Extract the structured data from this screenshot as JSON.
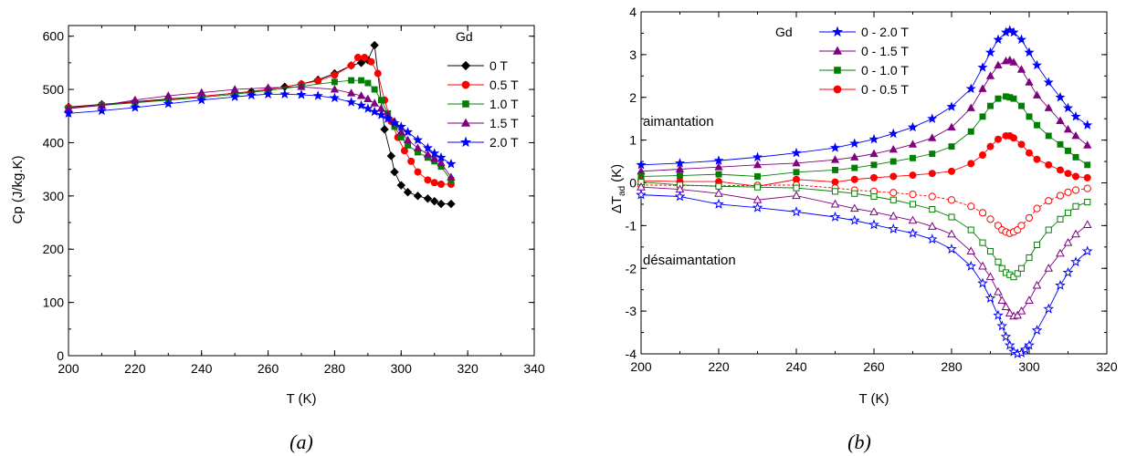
{
  "chart_data": [
    {
      "type": "line",
      "xlabel": "T (K)",
      "ylabel": "Cp (J/kg.K)",
      "xlim": [
        200,
        340
      ],
      "ylim": [
        0,
        620
      ],
      "xticks": [
        "200",
        "220",
        "240",
        "260",
        "280",
        "300",
        "320",
        "340"
      ],
      "yticks": [
        "0",
        "100",
        "200",
        "300",
        "400",
        "500",
        "600"
      ],
      "legend_title": "Gd",
      "legend_position": "top-right",
      "caption": "(a)",
      "series": [
        {
          "name": "0 T",
          "color": "#000000",
          "marker": "diamond",
          "x": [
            200,
            210,
            220,
            230,
            240,
            250,
            255,
            260,
            265,
            270,
            275,
            280,
            285,
            288,
            290,
            292,
            295,
            297,
            298,
            300,
            302,
            305,
            308,
            310,
            312,
            315
          ],
          "y": [
            467,
            472,
            477,
            482,
            487,
            493,
            496,
            500,
            505,
            510,
            518,
            530,
            545,
            550,
            555,
            583,
            425,
            375,
            345,
            320,
            307,
            300,
            295,
            290,
            285,
            285
          ]
        },
        {
          "name": "0.5 T",
          "color": "#ff0000",
          "marker": "circle",
          "x": [
            200,
            210,
            220,
            230,
            240,
            250,
            260,
            270,
            275,
            280,
            285,
            287,
            289,
            291,
            293,
            295,
            297,
            299,
            301,
            303,
            305,
            308,
            310,
            312,
            315
          ],
          "y": [
            466,
            471,
            476,
            481,
            487,
            493,
            500,
            510,
            516,
            527,
            545,
            560,
            560,
            552,
            530,
            480,
            440,
            410,
            385,
            365,
            345,
            330,
            325,
            322,
            322
          ]
        },
        {
          "name": "1.0 T",
          "color": "#008000",
          "marker": "square",
          "x": [
            200,
            210,
            220,
            230,
            240,
            250,
            260,
            270,
            280,
            285,
            288,
            290,
            292,
            294,
            296,
            298,
            300,
            302,
            305,
            308,
            310,
            312,
            315
          ],
          "y": [
            465,
            470,
            475,
            480,
            485,
            491,
            498,
            506,
            514,
            517,
            517,
            512,
            500,
            480,
            455,
            430,
            410,
            395,
            382,
            372,
            365,
            355,
            330
          ]
        },
        {
          "name": "1.5 T",
          "color": "#800080",
          "marker": "triangle",
          "x": [
            200,
            210,
            220,
            230,
            240,
            250,
            260,
            270,
            280,
            285,
            288,
            290,
            292,
            294,
            296,
            298,
            300,
            302,
            305,
            308,
            310,
            312,
            315
          ],
          "y": [
            464,
            470,
            480,
            488,
            494,
            500,
            503,
            505,
            500,
            493,
            488,
            482,
            474,
            464,
            452,
            440,
            420,
            405,
            390,
            378,
            370,
            362,
            335
          ]
        },
        {
          "name": "2.0 T",
          "color": "#0000ff",
          "marker": "star",
          "x": [
            200,
            210,
            220,
            230,
            240,
            250,
            255,
            260,
            265,
            270,
            275,
            280,
            285,
            288,
            290,
            292,
            294,
            296,
            298,
            300,
            302,
            305,
            308,
            310,
            312,
            315
          ],
          "y": [
            455,
            460,
            466,
            473,
            480,
            486,
            489,
            491,
            491,
            490,
            488,
            484,
            476,
            470,
            464,
            458,
            452,
            445,
            437,
            430,
            420,
            405,
            390,
            380,
            372,
            360
          ]
        }
      ]
    },
    {
      "type": "line",
      "xlabel": "T (K)",
      "ylabel": "ΔT",
      "ylabel_sub": "ad",
      "ylabel_unit": "(K)",
      "xlim": [
        200,
        320
      ],
      "ylim": [
        -4,
        4
      ],
      "xticks": [
        "200",
        "220",
        "240",
        "260",
        "280",
        "300",
        "320"
      ],
      "yticks": [
        "-4",
        "-3",
        "-2",
        "-1",
        "0",
        "1",
        "2",
        "3",
        "4"
      ],
      "legend_title": "Gd",
      "legend_position": "top-center",
      "annotations": [
        "aimantation",
        "désaimantation"
      ],
      "caption": "(b)",
      "series": [
        {
          "name": "0 - 2.0 T",
          "color": "#0000ff",
          "marker": "star",
          "filled": true,
          "x": [
            200,
            210,
            220,
            230,
            240,
            250,
            255,
            260,
            265,
            270,
            275,
            280,
            285,
            288,
            290,
            292,
            294,
            295,
            296,
            298,
            300,
            302,
            305,
            308,
            310,
            312,
            315
          ],
          "y": [
            0.42,
            0.46,
            0.52,
            0.6,
            0.7,
            0.82,
            0.92,
            1.02,
            1.15,
            1.3,
            1.5,
            1.78,
            2.2,
            2.7,
            3.05,
            3.35,
            3.52,
            3.57,
            3.52,
            3.35,
            3.05,
            2.75,
            2.35,
            2.0,
            1.75,
            1.55,
            1.35
          ]
        },
        {
          "name": "0 - 1.5 T",
          "color": "#800080",
          "marker": "triangle",
          "filled": true,
          "x": [
            200,
            210,
            220,
            230,
            240,
            250,
            255,
            260,
            265,
            270,
            275,
            280,
            285,
            288,
            290,
            292,
            294,
            295,
            296,
            298,
            300,
            302,
            305,
            308,
            310,
            312,
            315
          ],
          "y": [
            0.27,
            0.32,
            0.37,
            0.42,
            0.46,
            0.54,
            0.6,
            0.68,
            0.78,
            0.9,
            1.05,
            1.3,
            1.75,
            2.2,
            2.5,
            2.75,
            2.85,
            2.87,
            2.82,
            2.65,
            2.35,
            2.05,
            1.75,
            1.45,
            1.25,
            1.1,
            0.88
          ]
        },
        {
          "name": "0 - 1.0 T",
          "color": "#008000",
          "marker": "square",
          "filled": true,
          "x": [
            200,
            210,
            220,
            230,
            240,
            250,
            255,
            260,
            265,
            270,
            275,
            280,
            285,
            288,
            290,
            292,
            294,
            295,
            296,
            298,
            300,
            302,
            305,
            308,
            310,
            312,
            315
          ],
          "y": [
            0.15,
            0.17,
            0.2,
            0.15,
            0.25,
            0.3,
            0.35,
            0.42,
            0.5,
            0.58,
            0.68,
            0.85,
            1.2,
            1.55,
            1.8,
            1.97,
            2.02,
            2.0,
            1.97,
            1.8,
            1.55,
            1.35,
            1.1,
            0.9,
            0.75,
            0.6,
            0.42
          ]
        },
        {
          "name": "0 - 0.5 T",
          "color": "#ff0000",
          "marker": "circle",
          "filled": true,
          "x": [
            200,
            210,
            220,
            230,
            240,
            250,
            255,
            260,
            265,
            270,
            275,
            280,
            285,
            288,
            290,
            292,
            294,
            295,
            296,
            298,
            300,
            302,
            305,
            308,
            310,
            312,
            315
          ],
          "y": [
            0.05,
            0.03,
            0.03,
            -0.08,
            0.08,
            0.02,
            0.08,
            0.12,
            0.15,
            0.18,
            0.22,
            0.27,
            0.45,
            0.65,
            0.85,
            1.02,
            1.1,
            1.1,
            1.05,
            0.9,
            0.7,
            0.55,
            0.42,
            0.3,
            0.22,
            0.15,
            0.12
          ]
        },
        {
          "name": "",
          "color": "#ff0000",
          "marker": "circle",
          "filled": false,
          "dashed": true,
          "x": [
            200,
            210,
            220,
            230,
            240,
            250,
            255,
            260,
            265,
            270,
            275,
            280,
            285,
            288,
            290,
            292,
            293,
            294,
            295,
            296,
            297,
            298,
            300,
            302,
            305,
            308,
            310,
            312,
            315
          ],
          "y": [
            -0.05,
            -0.06,
            -0.07,
            -0.06,
            -0.05,
            -0.12,
            -0.17,
            -0.2,
            -0.23,
            -0.27,
            -0.32,
            -0.4,
            -0.55,
            -0.7,
            -0.85,
            -1.0,
            -1.1,
            -1.15,
            -1.18,
            -1.15,
            -1.1,
            -1.0,
            -0.82,
            -0.6,
            -0.42,
            -0.3,
            -0.22,
            -0.17,
            -0.13
          ]
        },
        {
          "name": "",
          "color": "#008000",
          "marker": "square",
          "filled": false,
          "x": [
            200,
            210,
            220,
            230,
            240,
            250,
            255,
            260,
            265,
            270,
            275,
            280,
            285,
            288,
            290,
            292,
            293,
            294,
            295,
            296,
            297,
            298,
            300,
            302,
            305,
            308,
            310,
            312,
            315
          ],
          "y": [
            0.02,
            -0.05,
            -0.08,
            -0.1,
            -0.12,
            -0.2,
            -0.25,
            -0.32,
            -0.4,
            -0.5,
            -0.62,
            -0.8,
            -1.1,
            -1.4,
            -1.6,
            -1.85,
            -2.0,
            -2.1,
            -2.15,
            -2.2,
            -2.12,
            -2.0,
            -1.75,
            -1.45,
            -1.1,
            -0.85,
            -0.7,
            -0.55,
            -0.45
          ]
        },
        {
          "name": "",
          "color": "#800080",
          "marker": "triangle",
          "filled": false,
          "x": [
            200,
            210,
            220,
            230,
            240,
            250,
            255,
            260,
            265,
            270,
            275,
            280,
            285,
            288,
            290,
            292,
            293,
            294,
            295,
            296,
            297,
            298,
            300,
            302,
            305,
            308,
            310,
            312,
            315
          ],
          "y": [
            -0.1,
            -0.15,
            -0.25,
            -0.4,
            -0.3,
            -0.5,
            -0.6,
            -0.68,
            -0.78,
            -0.88,
            -1.02,
            -1.2,
            -1.6,
            -1.95,
            -2.2,
            -2.55,
            -2.75,
            -2.9,
            -3.05,
            -3.12,
            -3.1,
            -3.0,
            -2.75,
            -2.4,
            -2.0,
            -1.65,
            -1.4,
            -1.2,
            -0.98
          ]
        },
        {
          "name": "",
          "color": "#0000ff",
          "marker": "star",
          "filled": false,
          "x": [
            200,
            210,
            220,
            230,
            240,
            250,
            255,
            260,
            265,
            270,
            275,
            280,
            285,
            288,
            290,
            292,
            293,
            294,
            295,
            296,
            297,
            298,
            299,
            300,
            302,
            305,
            308,
            310,
            312,
            315
          ],
          "y": [
            -0.28,
            -0.32,
            -0.5,
            -0.58,
            -0.68,
            -0.8,
            -0.88,
            -0.98,
            -1.08,
            -1.18,
            -1.32,
            -1.55,
            -1.95,
            -2.35,
            -2.7,
            -3.1,
            -3.35,
            -3.6,
            -3.8,
            -3.95,
            -4.0,
            -3.98,
            -3.9,
            -3.8,
            -3.45,
            -2.95,
            -2.4,
            -2.1,
            -1.85,
            -1.6
          ]
        }
      ]
    }
  ]
}
